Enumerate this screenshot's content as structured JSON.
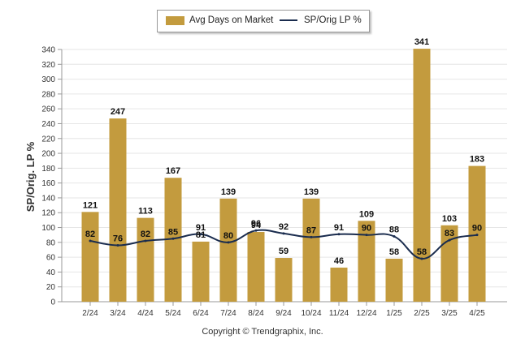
{
  "chart_data": {
    "type": "bar",
    "categories": [
      "2/24",
      "3/24",
      "4/24",
      "5/24",
      "6/24",
      "7/24",
      "8/24",
      "9/24",
      "10/24",
      "11/24",
      "12/24",
      "1/25",
      "2/25",
      "3/25",
      "4/25"
    ],
    "series": [
      {
        "name": "Avg Days on Market",
        "type": "bar",
        "color": "#c39b3e",
        "values": [
          121,
          247,
          113,
          167,
          81,
          139,
          94,
          59,
          139,
          46,
          109,
          58,
          341,
          103,
          183
        ]
      },
      {
        "name": "SP/Orig LP %",
        "type": "line",
        "color": "#1a2c4e",
        "values": [
          82,
          76,
          82,
          85,
          91,
          80,
          96,
          92,
          87,
          91,
          90,
          88,
          58,
          83,
          90
        ]
      }
    ],
    "ylabel": "SP/Orig. LP %",
    "ylim": [
      0,
      340
    ],
    "yticks": [
      0,
      20,
      40,
      60,
      80,
      100,
      120,
      140,
      160,
      180,
      200,
      220,
      240,
      260,
      280,
      300,
      320,
      340
    ],
    "grid": true,
    "legend_position": "top-center"
  },
  "footer": {
    "copyright": "Copyright © Trendgraphix, Inc."
  }
}
